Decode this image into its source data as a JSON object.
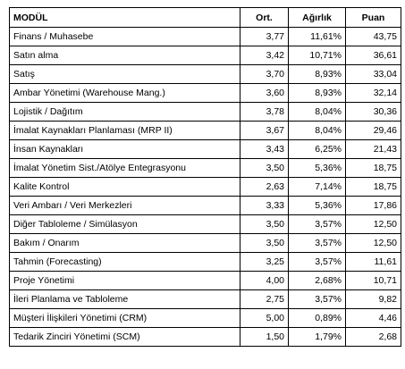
{
  "table": {
    "headers": {
      "module": "MODÜL",
      "ort": "Ort.",
      "agirlik": "Ağırlık",
      "puan": "Puan"
    },
    "rows": [
      {
        "module": "Finans / Muhasebe",
        "ort": "3,77",
        "agirlik": "11,61%",
        "puan": "43,75"
      },
      {
        "module": "Satın alma",
        "ort": "3,42",
        "agirlik": "10,71%",
        "puan": "36,61"
      },
      {
        "module": "Satış",
        "ort": "3,70",
        "agirlik": "8,93%",
        "puan": "33,04"
      },
      {
        "module": "Ambar Yönetimi (Warehouse Mang.)",
        "ort": "3,60",
        "agirlik": "8,93%",
        "puan": "32,14"
      },
      {
        "module": "Lojistik / Dağıtım",
        "ort": "3,78",
        "agirlik": "8,04%",
        "puan": "30,36"
      },
      {
        "module": "İmalat Kaynakları Planlaması (MRP II)",
        "ort": "3,67",
        "agirlik": "8,04%",
        "puan": "29,46"
      },
      {
        "module": "İnsan Kaynakları",
        "ort": "3,43",
        "agirlik": "6,25%",
        "puan": "21,43"
      },
      {
        "module": "İmalat Yönetim Sist./Atölye Entegrasyonu",
        "ort": "3,50",
        "agirlik": "5,36%",
        "puan": "18,75"
      },
      {
        "module": "Kalite Kontrol",
        "ort": "2,63",
        "agirlik": "7,14%",
        "puan": "18,75"
      },
      {
        "module": "Veri Ambarı / Veri Merkezleri",
        "ort": "3,33",
        "agirlik": "5,36%",
        "puan": "17,86"
      },
      {
        "module": "Diğer Tabloleme / Simülasyon",
        "ort": "3,50",
        "agirlik": "3,57%",
        "puan": "12,50"
      },
      {
        "module": "Bakım / Onarım",
        "ort": "3,50",
        "agirlik": "3,57%",
        "puan": "12,50"
      },
      {
        "module": "Tahmin (Forecasting)",
        "ort": "3,25",
        "agirlik": "3,57%",
        "puan": "11,61"
      },
      {
        "module": "Proje Yönetimi",
        "ort": "4,00",
        "agirlik": "2,68%",
        "puan": "10,71"
      },
      {
        "module": "İleri Planlama ve Tabloleme",
        "ort": "2,75",
        "agirlik": "3,57%",
        "puan": "9,82"
      },
      {
        "module": "Müşteri İlişkileri Yönetimi (CRM)",
        "ort": "5,00",
        "agirlik": "0,89%",
        "puan": "4,46"
      },
      {
        "module": "Tedarik Zinciri Yönetimi (SCM)",
        "ort": "1,50",
        "agirlik": "1,79%",
        "puan": "2,68"
      }
    ]
  }
}
